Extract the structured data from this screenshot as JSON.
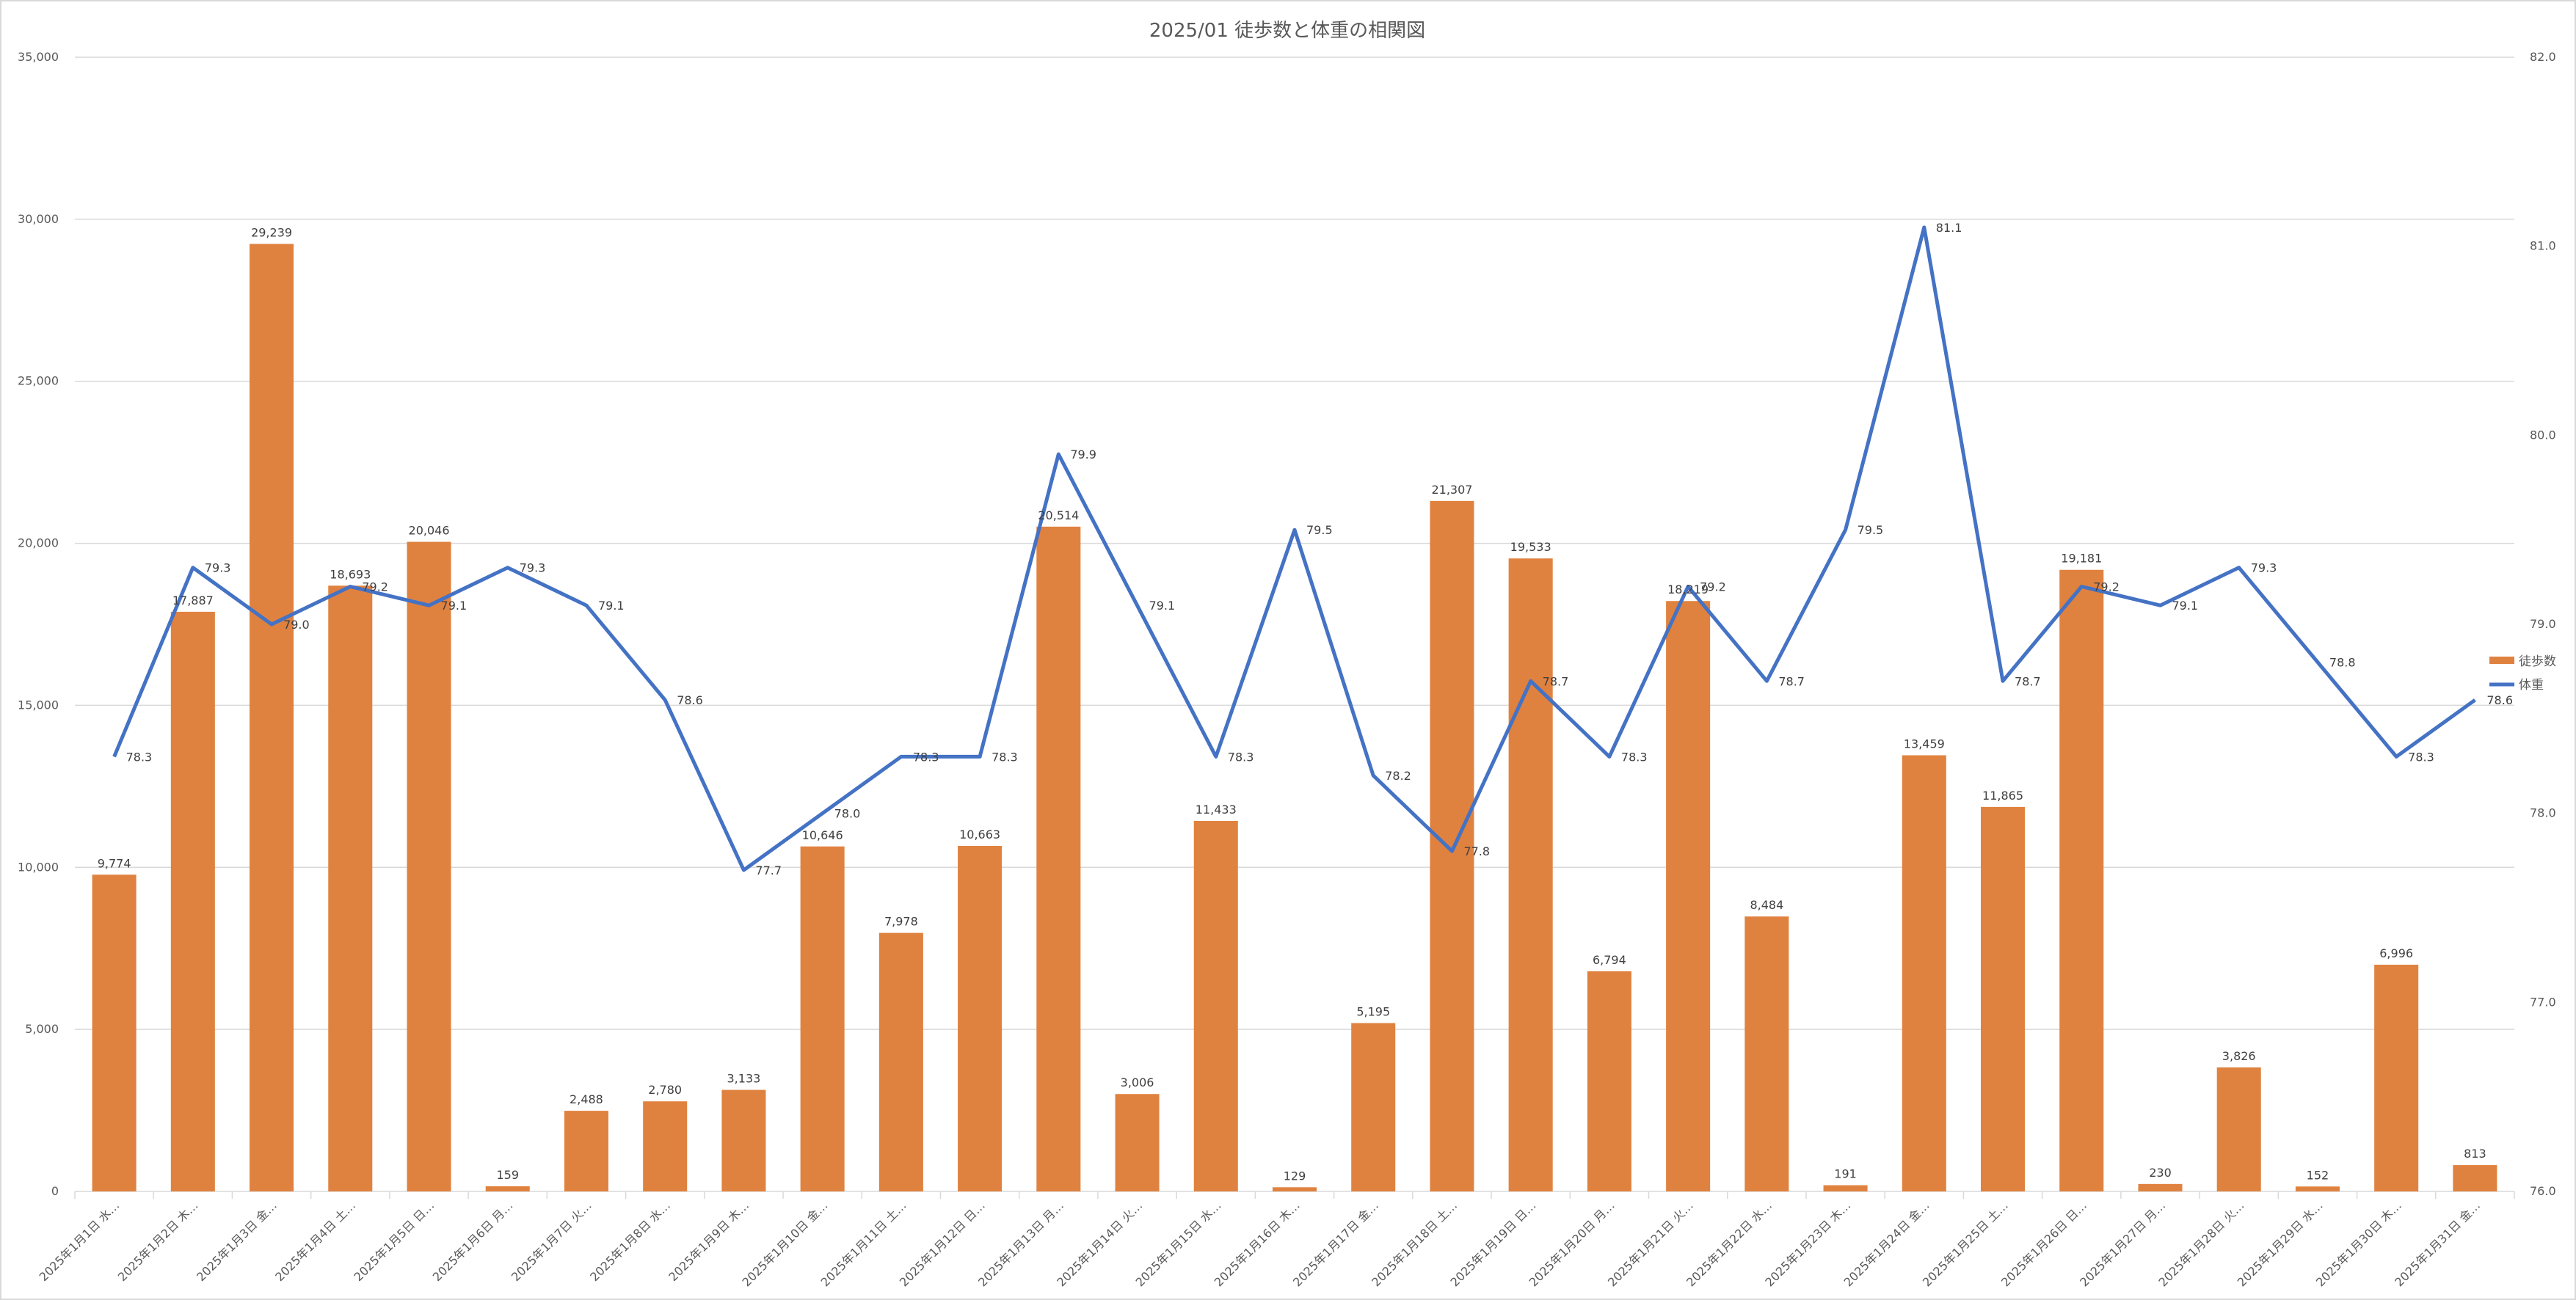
{
  "colors": {
    "steps": "#E0823F",
    "weight": "#4472C4",
    "grid": "#d9d9d9",
    "text": "#595959"
  },
  "chart_data": {
    "type": "bar",
    "title": "2025/01 徒歩数と体重の相関図",
    "categories": [
      "2025年1月1日 水…",
      "2025年1月2日 木…",
      "2025年1月3日 金…",
      "2025年1月4日 土…",
      "2025年1月5日 日…",
      "2025年1月6日 月…",
      "2025年1月7日 火…",
      "2025年1月8日 水…",
      "2025年1月9日 木…",
      "2025年1月10日 金…",
      "2025年1月11日 土…",
      "2025年1月12日 日…",
      "2025年1月13日 月…",
      "2025年1月14日 火…",
      "2025年1月15日 水…",
      "2025年1月16日 木…",
      "2025年1月17日 金…",
      "2025年1月18日 土…",
      "2025年1月19日 日…",
      "2025年1月20日 月…",
      "2025年1月21日 火…",
      "2025年1月22日 水…",
      "2025年1月23日 木…",
      "2025年1月24日 金…",
      "2025年1月25日 土…",
      "2025年1月26日 日…",
      "2025年1月27日 月…",
      "2025年1月28日 火…",
      "2025年1月29日 水…",
      "2025年1月30日 木…",
      "2025年1月31日 金…"
    ],
    "series": [
      {
        "name": "徒歩数",
        "type": "bar",
        "axis": "left",
        "values": [
          9774,
          17887,
          29239,
          18693,
          20046,
          159,
          2488,
          2780,
          3133,
          10646,
          7978,
          10663,
          20514,
          3006,
          11433,
          129,
          5195,
          21307,
          19533,
          6794,
          18219,
          8484,
          191,
          13459,
          11865,
          19181,
          230,
          3826,
          152,
          6996,
          813
        ],
        "labels": [
          "9,774",
          "17,887",
          "29,239",
          "18,693",
          "20,046",
          "159",
          "2,488",
          "2,780",
          "3,133",
          "10,646",
          "7,978",
          "10,663",
          "20,514",
          "3,006",
          "11,433",
          "129",
          "5,195",
          "21,307",
          "19,533",
          "6,794",
          "18,219",
          "8,484",
          "191",
          "13,459",
          "11,865",
          "19,181",
          "230",
          "3,826",
          "152",
          "6,996",
          "813"
        ]
      },
      {
        "name": "体重",
        "type": "line",
        "axis": "right",
        "values": [
          78.3,
          79.3,
          79.0,
          79.2,
          79.1,
          79.3,
          79.1,
          78.6,
          77.7,
          78.0,
          78.3,
          78.3,
          79.9,
          79.1,
          78.3,
          79.5,
          78.2,
          77.8,
          78.7,
          78.3,
          79.2,
          78.7,
          79.5,
          81.1,
          78.7,
          79.2,
          79.1,
          79.3,
          78.8,
          78.3,
          78.6
        ],
        "labels": [
          "78.3",
          "79.3",
          "79.0",
          "79.2",
          "79.1",
          "79.3",
          "79.1",
          "78.6",
          "77.7",
          "78.0",
          "78.3",
          "78.3",
          "79.9",
          "79.1",
          "78.3",
          "79.5",
          "78.2",
          "77.8",
          "78.7",
          "78.3",
          "79.2",
          "78.7",
          "79.5",
          "81.1",
          "78.7",
          "79.2",
          "79.1",
          "79.3",
          "78.8",
          "78.3",
          "78.6"
        ]
      }
    ],
    "y_left": {
      "lim": [
        0,
        35000
      ],
      "ticks": [
        "0",
        "5,000",
        "10,000",
        "15,000",
        "20,000",
        "25,000",
        "30,000",
        "35,000"
      ]
    },
    "y_right": {
      "lim": [
        76.0,
        82.0
      ],
      "ticks": [
        "76.0",
        "77.0",
        "78.0",
        "79.0",
        "80.0",
        "81.0",
        "82.0"
      ]
    },
    "grid": true,
    "legend": {
      "position": "right",
      "items": [
        "徒歩数",
        "体重"
      ]
    }
  }
}
